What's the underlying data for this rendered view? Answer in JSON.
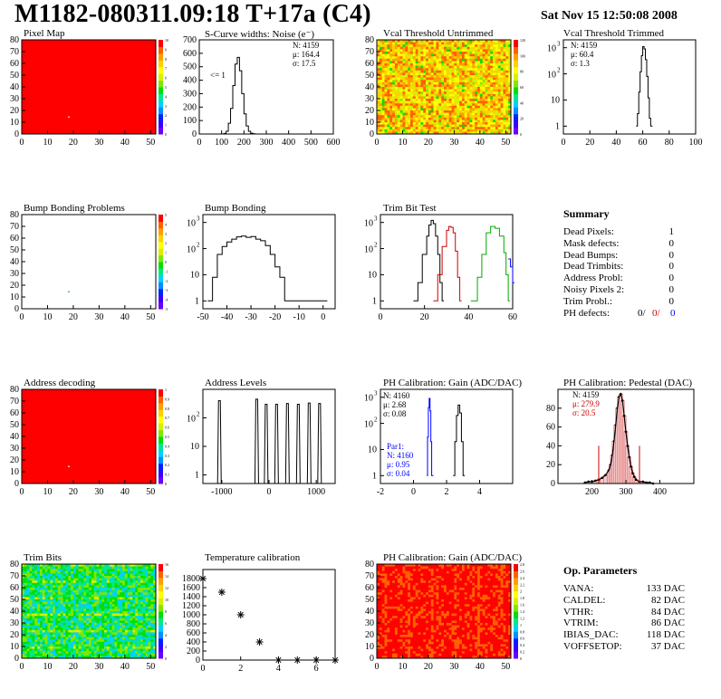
{
  "page": {
    "title": "M1182-080311.09:18 T+17a (C4)",
    "date": "Sat Nov 15 12:50:08 2008"
  },
  "chart_data": [
    {
      "id": "pixel_map",
      "type": "heatmap",
      "title": "Pixel Map",
      "xlim": [
        0,
        52
      ],
      "ylim": [
        0,
        80
      ],
      "xticks": [
        0,
        10,
        20,
        30,
        40,
        50
      ],
      "yticks": [
        0,
        10,
        20,
        30,
        40,
        50,
        60,
        70,
        80
      ],
      "zticks": [
        0,
        1,
        2,
        3,
        4,
        5,
        6,
        7,
        8,
        9,
        10
      ],
      "fill": "#ff0000",
      "special_pixels": [
        [
          18,
          15
        ]
      ]
    },
    {
      "id": "scurve_noise",
      "type": "line",
      "title": "S-Curve widths: Noise (e⁻)",
      "xlim": [
        0,
        600
      ],
      "ylim": [
        0,
        700
      ],
      "xticks": [
        0,
        100,
        200,
        300,
        400,
        500,
        600
      ],
      "yticks": [
        0,
        100,
        200,
        300,
        400,
        500,
        600,
        700
      ],
      "stats": [
        "N: 4159",
        "μ: 164.4",
        "σ: 17.5"
      ],
      "annotation": "<= 1",
      "x": [
        100,
        110,
        120,
        130,
        140,
        150,
        160,
        170,
        180,
        190,
        200,
        210,
        220,
        230,
        240,
        250
      ],
      "y": [
        0,
        4,
        20,
        80,
        190,
        360,
        520,
        570,
        470,
        300,
        150,
        60,
        20,
        6,
        2,
        0
      ]
    },
    {
      "id": "vcal_untrimmed",
      "type": "heatmap",
      "title": "Vcal Threshold Untrimmed",
      "xlim": [
        0,
        52
      ],
      "ylim": [
        0,
        80
      ],
      "xticks": [
        0,
        10,
        20,
        30,
        40,
        50
      ],
      "yticks": [
        0,
        10,
        20,
        30,
        40,
        50,
        60,
        70,
        80
      ],
      "zticks": [
        0,
        20,
        40,
        60,
        80,
        100,
        120
      ]
    },
    {
      "id": "vcal_trimmed",
      "type": "line",
      "title": "Vcal Threshold Trimmed",
      "log_y": true,
      "xlim": [
        0,
        100
      ],
      "ylim": [
        0.5,
        2000
      ],
      "xticks": [
        0,
        20,
        40,
        60,
        80,
        100
      ],
      "yticks": [
        1,
        10,
        100,
        1000
      ],
      "stats": [
        "N: 4159",
        "μ: 60.4",
        "σ:  1.3"
      ],
      "x": [
        55,
        56,
        57,
        58,
        59,
        60,
        61,
        62,
        63,
        64,
        65,
        66
      ],
      "y": [
        1,
        3,
        20,
        120,
        500,
        1100,
        900,
        350,
        80,
        12,
        2,
        1
      ]
    },
    {
      "id": "bump_problems",
      "type": "heatmap",
      "title": "Bump Bonding Problems",
      "xlim": [
        0,
        52
      ],
      "ylim": [
        0,
        80
      ],
      "xticks": [
        0,
        10,
        20,
        30,
        40,
        50
      ],
      "yticks": [
        0,
        10,
        20,
        30,
        40,
        50,
        60,
        70,
        80
      ],
      "zticks": [
        -5,
        -4,
        -3,
        -2,
        -1,
        0,
        1,
        2,
        3,
        4,
        5
      ],
      "special_pixels": [
        [
          18,
          15
        ]
      ]
    },
    {
      "id": "bump_bonding",
      "type": "line",
      "title": "Bump Bonding",
      "log_y": true,
      "xlim": [
        -50,
        5
      ],
      "ylim": [
        0.5,
        2000
      ],
      "xticks": [
        -50,
        -40,
        -30,
        -20,
        -10,
        0
      ],
      "yticks": [
        1,
        10,
        100,
        1000
      ],
      "x": [
        -48,
        -46,
        -44,
        -42,
        -40,
        -38,
        -36,
        -34,
        -32,
        -30,
        -28,
        -26,
        -24,
        -22,
        -20,
        -18,
        -16,
        1
      ],
      "y": [
        1,
        8,
        60,
        120,
        180,
        230,
        280,
        300,
        270,
        290,
        230,
        200,
        130,
        60,
        20,
        8,
        1,
        1
      ]
    },
    {
      "id": "trim_bit_test",
      "type": "line",
      "title": "Trim Bit Test",
      "log_y": true,
      "xlim": [
        0,
        60
      ],
      "ylim": [
        0.5,
        2000
      ],
      "xticks": [
        0,
        20,
        40,
        60
      ],
      "yticks": [
        1,
        10,
        100,
        1000
      ],
      "series": [
        {
          "color": "#000000",
          "x": [
            15,
            17,
            19,
            21,
            22,
            23,
            24,
            25,
            26,
            27,
            28
          ],
          "y": [
            1,
            5,
            60,
            300,
            800,
            1200,
            900,
            300,
            60,
            5,
            1
          ]
        },
        {
          "color": "#cc0000",
          "x": [
            24,
            26,
            28,
            30,
            31,
            32,
            33,
            34,
            35,
            36
          ],
          "y": [
            1,
            10,
            120,
            500,
            700,
            650,
            400,
            80,
            8,
            1
          ]
        },
        {
          "color": "#00aa00",
          "x": [
            41,
            44,
            46,
            48,
            50,
            52,
            54,
            56,
            57,
            58
          ],
          "y": [
            1,
            8,
            60,
            400,
            700,
            600,
            300,
            70,
            10,
            1
          ]
        },
        {
          "color": "#0000ff",
          "x": [
            58,
            59,
            60
          ],
          "y": [
            40,
            20,
            5
          ]
        }
      ]
    },
    {
      "id": "summary",
      "type": "table",
      "title": "Summary",
      "rows": [
        [
          "Dead Pixels:",
          "1"
        ],
        [
          "Mask defects:",
          "0"
        ],
        [
          "Dead Bumps:",
          "0"
        ],
        [
          "Dead Trimbits:",
          "0"
        ],
        [
          "Address Probl:",
          "0"
        ],
        [
          "Noisy Pixels 2:",
          "0"
        ],
        [
          "Trim Probl.:",
          "0"
        ]
      ],
      "ph_defects": {
        "label": "PH defects:",
        "values": [
          "0/",
          "0/",
          "0"
        ],
        "colors": [
          "#000000",
          "#cc0000",
          "#0000ff"
        ]
      }
    },
    {
      "id": "address_decoding",
      "type": "heatmap",
      "title": "Address decoding",
      "xlim": [
        0,
        52
      ],
      "ylim": [
        0,
        80
      ],
      "xticks": [
        0,
        10,
        20,
        30,
        40,
        50
      ],
      "yticks": [
        0,
        10,
        20,
        30,
        40,
        50,
        60,
        70,
        80
      ],
      "zticks": [
        0,
        0.1,
        0.2,
        0.3,
        0.4,
        0.5,
        0.6,
        0.7,
        0.8,
        0.9,
        1
      ],
      "fill": "#ff0000",
      "special_pixels": [
        [
          18,
          15
        ]
      ]
    },
    {
      "id": "address_levels",
      "type": "line",
      "title": "Address Levels",
      "log_y": true,
      "xlim": [
        -1400,
        1400
      ],
      "ylim": [
        0.5,
        1000
      ],
      "xticks": [
        -1000,
        0,
        1000
      ],
      "yticks": [
        1,
        10,
        100
      ],
      "peaks": [
        [
          -1050,
          400
        ],
        [
          -260,
          450
        ],
        [
          -60,
          300
        ],
        [
          160,
          300
        ],
        [
          390,
          320
        ],
        [
          620,
          300
        ],
        [
          850,
          330
        ],
        [
          1070,
          320
        ]
      ]
    },
    {
      "id": "ph_gain",
      "type": "line",
      "title": "PH Calibration: Gain (ADC/DAC)",
      "log_y": true,
      "xlim": [
        -2,
        6
      ],
      "ylim": [
        0.5,
        2000
      ],
      "xticks": [
        -2,
        0,
        2,
        4
      ],
      "yticks": [
        1,
        10,
        100,
        1000
      ],
      "stats": [
        "N: 4160",
        "μ: 2.68",
        "σ: 0.08"
      ],
      "stats2": [
        "Par1:",
        "N: 4160",
        "μ: 0.95",
        "σ: 0.04"
      ],
      "series": [
        {
          "color": "#000000",
          "x": [
            2.4,
            2.5,
            2.6,
            2.7,
            2.8,
            2.9,
            3.0
          ],
          "y": [
            1,
            20,
            200,
            500,
            250,
            20,
            1
          ]
        },
        {
          "color": "#0000ff",
          "x": [
            0.8,
            0.85,
            0.9,
            0.95,
            1.0,
            1.05,
            1.1
          ],
          "y": [
            1,
            30,
            400,
            900,
            300,
            20,
            1
          ]
        }
      ]
    },
    {
      "id": "ph_pedestal",
      "type": "bar",
      "title": "PH Calibration: Pedestal (DAC)",
      "xlim": [
        100,
        500
      ],
      "ylim": [
        0,
        100
      ],
      "xticks": [
        200,
        300,
        400
      ],
      "yticks": [
        0,
        20,
        40,
        60,
        80
      ],
      "stats": [
        "N: 4159",
        "μ: 279.9",
        "σ: 20.5"
      ],
      "cut_lines": [
        220,
        340
      ],
      "x": [
        180,
        190,
        200,
        210,
        220,
        230,
        240,
        250,
        255,
        260,
        265,
        270,
        275,
        280,
        285,
        290,
        295,
        300,
        305,
        310,
        315,
        320,
        325,
        330,
        340,
        350,
        360,
        370,
        380
      ],
      "y": [
        1,
        2,
        2,
        3,
        4,
        6,
        9,
        14,
        20,
        30,
        45,
        62,
        80,
        92,
        95,
        88,
        72,
        55,
        40,
        28,
        18,
        11,
        7,
        4,
        2,
        2,
        1,
        1,
        0
      ]
    },
    {
      "id": "trim_bits",
      "type": "heatmap",
      "title": "Trim Bits",
      "xlim": [
        0,
        52
      ],
      "ylim": [
        0,
        80
      ],
      "xticks": [
        0,
        10,
        20,
        30,
        40,
        50
      ],
      "yticks": [
        0,
        10,
        20,
        30,
        40,
        50,
        60,
        70,
        80
      ],
      "zticks": [
        0,
        2,
        4,
        6,
        8,
        10,
        12,
        14,
        16
      ]
    },
    {
      "id": "temperature",
      "type": "scatter",
      "title": "Temperature calibration",
      "xlim": [
        0,
        7
      ],
      "ylim": [
        0,
        2000
      ],
      "xticks": [
        0,
        2,
        4,
        6
      ],
      "yticks": [
        0,
        200,
        400,
        600,
        800,
        1000,
        1200,
        1400,
        1600,
        1800
      ],
      "x": [
        0,
        1,
        2,
        3,
        4,
        5,
        6,
        7
      ],
      "y": [
        1800,
        1500,
        1000,
        400,
        0,
        0,
        0,
        0
      ]
    },
    {
      "id": "ph_gain_map",
      "type": "heatmap",
      "title": "PH Calibration: Gain (ADC/DAC)",
      "xlim": [
        0,
        52
      ],
      "ylim": [
        0,
        80
      ],
      "xticks": [
        0,
        10,
        20,
        30,
        40,
        50
      ],
      "yticks": [
        0,
        10,
        20,
        30,
        40,
        50,
        60,
        70,
        80
      ],
      "zticks": [
        0,
        0.2,
        0.4,
        0.6,
        0.8,
        1,
        1.2,
        1.4,
        1.6,
        1.8,
        2,
        2.2,
        2.4,
        2.6,
        2.8
      ]
    },
    {
      "id": "op_params",
      "type": "table",
      "title": "Op. Parameters",
      "rows": [
        [
          "VANA:",
          "133 DAC"
        ],
        [
          "CALDEL:",
          "82 DAC"
        ],
        [
          "VTHR:",
          "84 DAC"
        ],
        [
          "VTRIM:",
          "86 DAC"
        ],
        [
          "IBIAS_DAC:",
          "118 DAC"
        ],
        [
          "VOFFSETOP:",
          "37 DAC"
        ]
      ]
    }
  ]
}
